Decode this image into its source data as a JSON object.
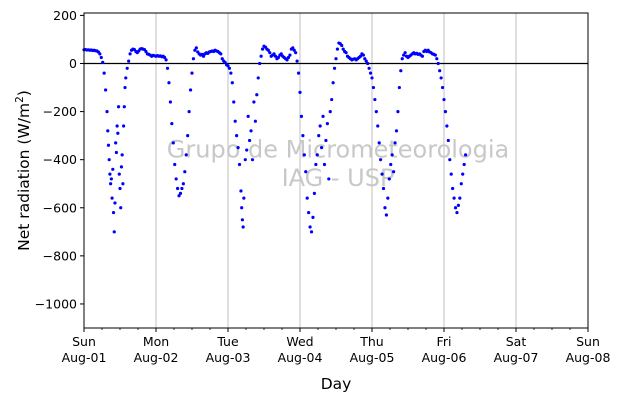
{
  "chart_data": {
    "type": "scatter",
    "title": "",
    "xlabel": "Day",
    "ylabel": "Net radiation (W/m²)",
    "ylabel_parts": {
      "main": "Net radiation (W/m",
      "sup": "2",
      "end": ")"
    },
    "watermark": [
      "Grupo de Micrometeorologia",
      "IAG - USP"
    ],
    "xlim": [
      0,
      7
    ],
    "ylim": [
      -1100,
      210
    ],
    "yticks": [
      200,
      0,
      -200,
      -400,
      -600,
      -800,
      -1000
    ],
    "ytick_labels": [
      "200",
      "0",
      "−200",
      "−400",
      "−600",
      "−800",
      "−1000"
    ],
    "xticks": [
      {
        "day": 0,
        "weekday": "Sun",
        "date": "Aug-01"
      },
      {
        "day": 1,
        "weekday": "Mon",
        "date": "Aug-02"
      },
      {
        "day": 2,
        "weekday": "Tue",
        "date": "Aug-03"
      },
      {
        "day": 3,
        "weekday": "Wed",
        "date": "Aug-04"
      },
      {
        "day": 4,
        "weekday": "Thu",
        "date": "Aug-05"
      },
      {
        "day": 5,
        "weekday": "Fri",
        "date": "Aug-06"
      },
      {
        "day": 6,
        "weekday": "Sat",
        "date": "Aug-07"
      },
      {
        "day": 7,
        "weekday": "Sun",
        "date": "Aug-08"
      }
    ],
    "minor_ticks_per_day": 4,
    "grid": "vertical",
    "zero_line": true,
    "series": [
      {
        "color": "#0000ff",
        "x_unit": "day",
        "y_unit": "W/m²",
        "points": [
          [
            0.0,
            57
          ],
          [
            0.02,
            58
          ],
          [
            0.04,
            56
          ],
          [
            0.06,
            57
          ],
          [
            0.08,
            55
          ],
          [
            0.1,
            56
          ],
          [
            0.12,
            54
          ],
          [
            0.14,
            55
          ],
          [
            0.16,
            53
          ],
          [
            0.18,
            52
          ],
          [
            0.2,
            48
          ],
          [
            0.22,
            40
          ],
          [
            0.24,
            25
          ],
          [
            0.26,
            5
          ],
          [
            0.28,
            -40
          ],
          [
            0.3,
            -110
          ],
          [
            0.32,
            -200
          ],
          [
            0.33,
            -280
          ],
          [
            0.34,
            -340
          ],
          [
            0.35,
            -400
          ],
          [
            0.36,
            -460
          ],
          [
            0.37,
            -500
          ],
          [
            0.38,
            -480
          ],
          [
            0.39,
            -560
          ],
          [
            0.4,
            -440
          ],
          [
            0.41,
            -620
          ],
          [
            0.42,
            -700
          ],
          [
            0.43,
            -580
          ],
          [
            0.44,
            -330
          ],
          [
            0.45,
            -370
          ],
          [
            0.46,
            -260
          ],
          [
            0.47,
            -290
          ],
          [
            0.48,
            -180
          ],
          [
            0.49,
            -460
          ],
          [
            0.5,
            -520
          ],
          [
            0.51,
            -600
          ],
          [
            0.52,
            -430
          ],
          [
            0.53,
            -380
          ],
          [
            0.54,
            -500
          ],
          [
            0.55,
            -260
          ],
          [
            0.56,
            -180
          ],
          [
            0.57,
            -100
          ],
          [
            0.58,
            -60
          ],
          [
            0.6,
            -20
          ],
          [
            0.62,
            10
          ],
          [
            0.64,
            40
          ],
          [
            0.66,
            55
          ],
          [
            0.68,
            60
          ],
          [
            0.7,
            58
          ],
          [
            0.72,
            50
          ],
          [
            0.74,
            45
          ],
          [
            0.76,
            52
          ],
          [
            0.78,
            60
          ],
          [
            0.8,
            62
          ],
          [
            0.82,
            60
          ],
          [
            0.84,
            58
          ],
          [
            0.86,
            50
          ],
          [
            0.88,
            40
          ],
          [
            0.9,
            38
          ],
          [
            0.92,
            35
          ],
          [
            0.94,
            30
          ],
          [
            0.96,
            34
          ],
          [
            0.98,
            32
          ],
          [
            1.0,
            30
          ],
          [
            1.02,
            33
          ],
          [
            1.04,
            30
          ],
          [
            1.06,
            32
          ],
          [
            1.08,
            28
          ],
          [
            1.1,
            30
          ],
          [
            1.12,
            25
          ],
          [
            1.14,
            15
          ],
          [
            1.16,
            -20
          ],
          [
            1.18,
            -80
          ],
          [
            1.2,
            -160
          ],
          [
            1.22,
            -250
          ],
          [
            1.24,
            -330
          ],
          [
            1.26,
            -420
          ],
          [
            1.28,
            -480
          ],
          [
            1.3,
            -520
          ],
          [
            1.32,
            -550
          ],
          [
            1.34,
            -540
          ],
          [
            1.36,
            -520
          ],
          [
            1.38,
            -500
          ],
          [
            1.4,
            -450
          ],
          [
            1.42,
            -380
          ],
          [
            1.44,
            -300
          ],
          [
            1.46,
            -200
          ],
          [
            1.48,
            -110
          ],
          [
            1.5,
            -40
          ],
          [
            1.52,
            20
          ],
          [
            1.54,
            55
          ],
          [
            1.56,
            65
          ],
          [
            1.58,
            48
          ],
          [
            1.6,
            40
          ],
          [
            1.62,
            35
          ],
          [
            1.64,
            38
          ],
          [
            1.66,
            30
          ],
          [
            1.68,
            40
          ],
          [
            1.7,
            45
          ],
          [
            1.72,
            42
          ],
          [
            1.74,
            48
          ],
          [
            1.76,
            50
          ],
          [
            1.78,
            52
          ],
          [
            1.8,
            50
          ],
          [
            1.82,
            55
          ],
          [
            1.84,
            52
          ],
          [
            1.86,
            50
          ],
          [
            1.88,
            45
          ],
          [
            1.9,
            40
          ],
          [
            1.92,
            20
          ],
          [
            1.94,
            10
          ],
          [
            1.96,
            5
          ],
          [
            1.98,
            -5
          ],
          [
            2.0,
            -10
          ],
          [
            2.02,
            -20
          ],
          [
            2.04,
            -40
          ],
          [
            2.06,
            -80
          ],
          [
            2.08,
            -160
          ],
          [
            2.1,
            -240
          ],
          [
            2.12,
            -300
          ],
          [
            2.14,
            -350
          ],
          [
            2.16,
            -420
          ],
          [
            2.18,
            -530
          ],
          [
            2.19,
            -600
          ],
          [
            2.2,
            -650
          ],
          [
            2.21,
            -680
          ],
          [
            2.22,
            -560
          ],
          [
            2.24,
            -400
          ],
          [
            2.26,
            -360
          ],
          [
            2.28,
            -220
          ],
          [
            2.3,
            -320
          ],
          [
            2.32,
            -280
          ],
          [
            2.34,
            -400
          ],
          [
            2.36,
            -160
          ],
          [
            2.38,
            -240
          ],
          [
            2.4,
            -130
          ],
          [
            2.42,
            -60
          ],
          [
            2.44,
            0
          ],
          [
            2.46,
            30
          ],
          [
            2.48,
            60
          ],
          [
            2.5,
            72
          ],
          [
            2.52,
            68
          ],
          [
            2.54,
            60
          ],
          [
            2.56,
            55
          ],
          [
            2.58,
            45
          ],
          [
            2.6,
            30
          ],
          [
            2.62,
            35
          ],
          [
            2.64,
            40
          ],
          [
            2.66,
            30
          ],
          [
            2.68,
            20
          ],
          [
            2.7,
            25
          ],
          [
            2.72,
            35
          ],
          [
            2.74,
            40
          ],
          [
            2.76,
            30
          ],
          [
            2.78,
            25
          ],
          [
            2.8,
            20
          ],
          [
            2.82,
            15
          ],
          [
            2.84,
            25
          ],
          [
            2.86,
            35
          ],
          [
            2.88,
            60
          ],
          [
            2.9,
            65
          ],
          [
            2.92,
            55
          ],
          [
            2.94,
            45
          ],
          [
            2.96,
            10
          ],
          [
            2.98,
            -40
          ],
          [
            3.0,
            -120
          ],
          [
            3.02,
            -220
          ],
          [
            3.04,
            -300
          ],
          [
            3.06,
            -380
          ],
          [
            3.08,
            -450
          ],
          [
            3.1,
            -560
          ],
          [
            3.12,
            -620
          ],
          [
            3.14,
            -680
          ],
          [
            3.16,
            -700
          ],
          [
            3.18,
            -640
          ],
          [
            3.2,
            -540
          ],
          [
            3.22,
            -420
          ],
          [
            3.24,
            -380
          ],
          [
            3.26,
            -300
          ],
          [
            3.28,
            -260
          ],
          [
            3.3,
            -350
          ],
          [
            3.32,
            -220
          ],
          [
            3.34,
            -420
          ],
          [
            3.36,
            -320
          ],
          [
            3.38,
            -250
          ],
          [
            3.4,
            -480
          ],
          [
            3.42,
            -200
          ],
          [
            3.44,
            -150
          ],
          [
            3.46,
            -80
          ],
          [
            3.48,
            -20
          ],
          [
            3.5,
            20
          ],
          [
            3.52,
            60
          ],
          [
            3.54,
            85
          ],
          [
            3.56,
            82
          ],
          [
            3.58,
            75
          ],
          [
            3.6,
            60
          ],
          [
            3.62,
            50
          ],
          [
            3.64,
            45
          ],
          [
            3.66,
            30
          ],
          [
            3.68,
            25
          ],
          [
            3.7,
            20
          ],
          [
            3.72,
            15
          ],
          [
            3.74,
            18
          ],
          [
            3.76,
            20
          ],
          [
            3.78,
            15
          ],
          [
            3.8,
            20
          ],
          [
            3.82,
            25
          ],
          [
            3.84,
            30
          ],
          [
            3.86,
            40
          ],
          [
            3.88,
            35
          ],
          [
            3.9,
            20
          ],
          [
            3.92,
            10
          ],
          [
            3.94,
            0
          ],
          [
            3.96,
            -20
          ],
          [
            3.98,
            -40
          ],
          [
            4.0,
            -60
          ],
          [
            4.02,
            -100
          ],
          [
            4.04,
            -150
          ],
          [
            4.06,
            -200
          ],
          [
            4.08,
            -260
          ],
          [
            4.1,
            -330
          ],
          [
            4.12,
            -400
          ],
          [
            4.14,
            -460
          ],
          [
            4.16,
            -520
          ],
          [
            4.18,
            -600
          ],
          [
            4.2,
            -630
          ],
          [
            4.22,
            -560
          ],
          [
            4.24,
            -480
          ],
          [
            4.26,
            -420
          ],
          [
            4.28,
            -380
          ],
          [
            4.3,
            -450
          ],
          [
            4.32,
            -330
          ],
          [
            4.34,
            -280
          ],
          [
            4.36,
            -200
          ],
          [
            4.38,
            -100
          ],
          [
            4.4,
            -30
          ],
          [
            4.42,
            20
          ],
          [
            4.44,
            35
          ],
          [
            4.46,
            45
          ],
          [
            4.48,
            30
          ],
          [
            4.5,
            25
          ],
          [
            4.52,
            30
          ],
          [
            4.54,
            35
          ],
          [
            4.56,
            40
          ],
          [
            4.58,
            45
          ],
          [
            4.6,
            40
          ],
          [
            4.62,
            42
          ],
          [
            4.64,
            38
          ],
          [
            4.66,
            40
          ],
          [
            4.68,
            35
          ],
          [
            4.7,
            30
          ],
          [
            4.72,
            50
          ],
          [
            4.74,
            55
          ],
          [
            4.76,
            50
          ],
          [
            4.78,
            55
          ],
          [
            4.8,
            48
          ],
          [
            4.82,
            45
          ],
          [
            4.84,
            40
          ],
          [
            4.86,
            38
          ],
          [
            4.88,
            35
          ],
          [
            4.9,
            20
          ],
          [
            4.92,
            0
          ],
          [
            4.94,
            -30
          ],
          [
            4.96,
            -60
          ],
          [
            4.98,
            -100
          ],
          [
            5.0,
            -150
          ],
          [
            5.02,
            -200
          ],
          [
            5.04,
            -260
          ],
          [
            5.06,
            -320
          ],
          [
            5.08,
            -400
          ],
          [
            5.1,
            -460
          ],
          [
            5.12,
            -520
          ],
          [
            5.14,
            -560
          ],
          [
            5.16,
            -600
          ],
          [
            5.18,
            -620
          ],
          [
            5.2,
            -590
          ],
          [
            5.22,
            -560
          ],
          [
            5.24,
            -500
          ],
          [
            5.26,
            -460
          ],
          [
            5.28,
            -420
          ],
          [
            5.3,
            -380
          ]
        ]
      }
    ]
  }
}
